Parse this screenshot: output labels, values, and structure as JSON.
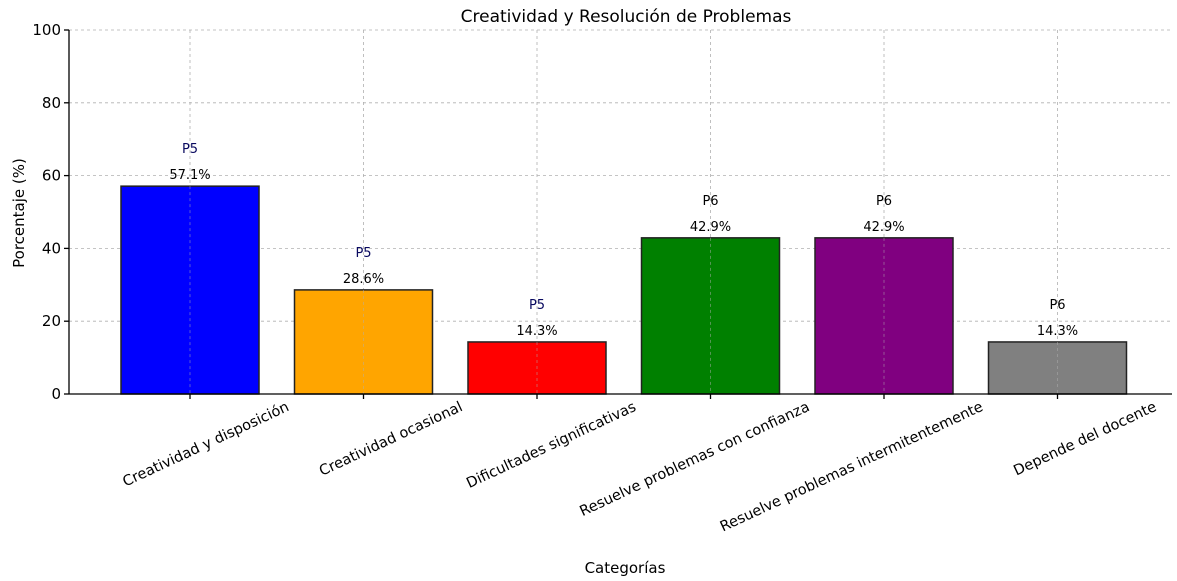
{
  "chart_data": {
    "type": "bar",
    "title": "Creatividad y Resolución de Problemas",
    "xlabel": "Categorías",
    "ylabel": "Porcentaje (%)",
    "ylim": [
      0,
      100
    ],
    "yticks": [
      "0",
      "20",
      "40",
      "60",
      "80",
      "100"
    ],
    "grid": true,
    "categories": [
      "Creatividad y disposición",
      "Creatividad ocasional",
      "Dificultades significativas",
      "Resuelve problemas con confianza",
      "Resuelve problemas intermitentemente",
      "Depende del docente"
    ],
    "values": [
      57.1,
      28.6,
      14.3,
      42.9,
      42.9,
      14.3
    ],
    "value_labels": [
      "57.1%",
      "28.6%",
      "14.3%",
      "42.9%",
      "42.9%",
      "14.3%"
    ],
    "group_labels": [
      "P5",
      "P5",
      "P5",
      "P6",
      "P6",
      "P6"
    ],
    "colors": [
      "#0000ff",
      "#ffa500",
      "#ff0000",
      "#008000",
      "#800080",
      "#808080"
    ],
    "group_label_colors": {
      "P5": "#0a0a60",
      "P6": "#000000"
    }
  }
}
